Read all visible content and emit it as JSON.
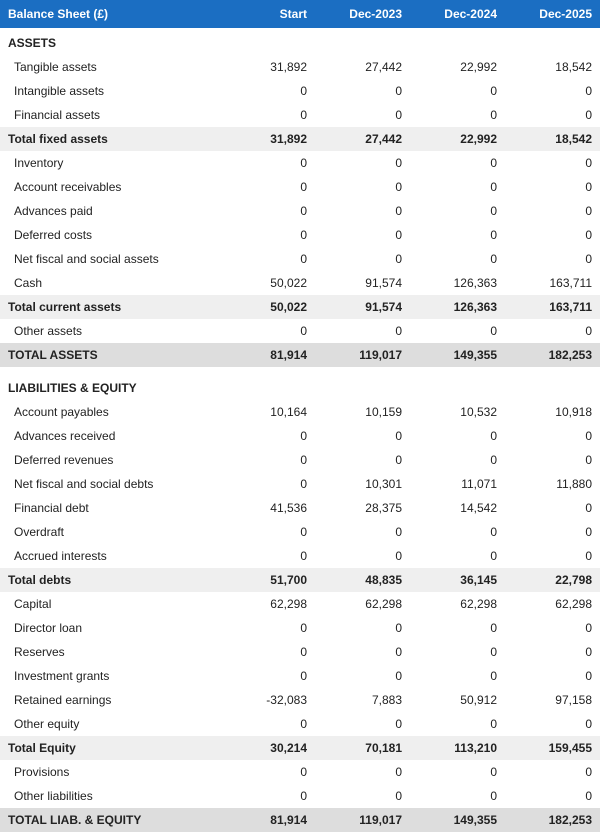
{
  "title": "Balance Sheet (£)",
  "columns": [
    "Start",
    "Dec-2023",
    "Dec-2024",
    "Dec-2025"
  ],
  "colors": {
    "header_bg": "#1b6ec2",
    "header_fg": "#ffffff",
    "subtotal_bg": "#efefef",
    "total_bg": "#dddddd",
    "text": "#222222"
  },
  "font_size": 12,
  "col_widths": {
    "label": 220,
    "num": 95
  },
  "rows": [
    {
      "type": "section",
      "label": "ASSETS"
    },
    {
      "type": "line",
      "label": "Tangible assets",
      "vals": [
        "31,892",
        "27,442",
        "22,992",
        "18,542"
      ]
    },
    {
      "type": "line",
      "label": "Intangible assets",
      "vals": [
        "0",
        "0",
        "0",
        "0"
      ]
    },
    {
      "type": "line",
      "label": "Financial assets",
      "vals": [
        "0",
        "0",
        "0",
        "0"
      ]
    },
    {
      "type": "sub",
      "label": "Total fixed assets",
      "vals": [
        "31,892",
        "27,442",
        "22,992",
        "18,542"
      ]
    },
    {
      "type": "line",
      "label": "Inventory",
      "vals": [
        "0",
        "0",
        "0",
        "0"
      ]
    },
    {
      "type": "line",
      "label": "Account receivables",
      "vals": [
        "0",
        "0",
        "0",
        "0"
      ]
    },
    {
      "type": "line",
      "label": "Advances paid",
      "vals": [
        "0",
        "0",
        "0",
        "0"
      ]
    },
    {
      "type": "line",
      "label": "Deferred costs",
      "vals": [
        "0",
        "0",
        "0",
        "0"
      ]
    },
    {
      "type": "line",
      "label": "Net fiscal and social assets",
      "vals": [
        "0",
        "0",
        "0",
        "0"
      ]
    },
    {
      "type": "line",
      "label": "Cash",
      "vals": [
        "50,022",
        "91,574",
        "126,363",
        "163,711"
      ]
    },
    {
      "type": "sub",
      "label": "Total current assets",
      "vals": [
        "50,022",
        "91,574",
        "126,363",
        "163,711"
      ]
    },
    {
      "type": "line",
      "label": "Other assets",
      "vals": [
        "0",
        "0",
        "0",
        "0"
      ]
    },
    {
      "type": "total",
      "label": "TOTAL ASSETS",
      "vals": [
        "81,914",
        "119,017",
        "149,355",
        "182,253"
      ]
    },
    {
      "type": "gap"
    },
    {
      "type": "section",
      "label": "LIABILITIES & EQUITY"
    },
    {
      "type": "line",
      "label": "Account payables",
      "vals": [
        "10,164",
        "10,159",
        "10,532",
        "10,918"
      ]
    },
    {
      "type": "line",
      "label": "Advances received",
      "vals": [
        "0",
        "0",
        "0",
        "0"
      ]
    },
    {
      "type": "line",
      "label": "Deferred revenues",
      "vals": [
        "0",
        "0",
        "0",
        "0"
      ]
    },
    {
      "type": "line",
      "label": "Net fiscal and social debts",
      "vals": [
        "0",
        "10,301",
        "11,071",
        "11,880"
      ]
    },
    {
      "type": "line",
      "label": "Financial debt",
      "vals": [
        "41,536",
        "28,375",
        "14,542",
        "0"
      ]
    },
    {
      "type": "line",
      "label": "Overdraft",
      "vals": [
        "0",
        "0",
        "0",
        "0"
      ]
    },
    {
      "type": "line",
      "label": "Accrued interests",
      "vals": [
        "0",
        "0",
        "0",
        "0"
      ]
    },
    {
      "type": "sub",
      "label": "Total debts",
      "vals": [
        "51,700",
        "48,835",
        "36,145",
        "22,798"
      ]
    },
    {
      "type": "line",
      "label": "Capital",
      "vals": [
        "62,298",
        "62,298",
        "62,298",
        "62,298"
      ]
    },
    {
      "type": "line",
      "label": "Director loan",
      "vals": [
        "0",
        "0",
        "0",
        "0"
      ]
    },
    {
      "type": "line",
      "label": "Reserves",
      "vals": [
        "0",
        "0",
        "0",
        "0"
      ]
    },
    {
      "type": "line",
      "label": "Investment grants",
      "vals": [
        "0",
        "0",
        "0",
        "0"
      ]
    },
    {
      "type": "line",
      "label": "Retained earnings",
      "vals": [
        "-32,083",
        "7,883",
        "50,912",
        "97,158"
      ]
    },
    {
      "type": "line",
      "label": "Other equity",
      "vals": [
        "0",
        "0",
        "0",
        "0"
      ]
    },
    {
      "type": "sub",
      "label": "Total Equity",
      "vals": [
        "30,214",
        "70,181",
        "113,210",
        "159,455"
      ]
    },
    {
      "type": "line",
      "label": "Provisions",
      "vals": [
        "0",
        "0",
        "0",
        "0"
      ]
    },
    {
      "type": "line",
      "label": "Other liabilities",
      "vals": [
        "0",
        "0",
        "0",
        "0"
      ]
    },
    {
      "type": "total",
      "label": "TOTAL LIAB. & EQUITY",
      "vals": [
        "81,914",
        "119,017",
        "149,355",
        "182,253"
      ]
    }
  ]
}
